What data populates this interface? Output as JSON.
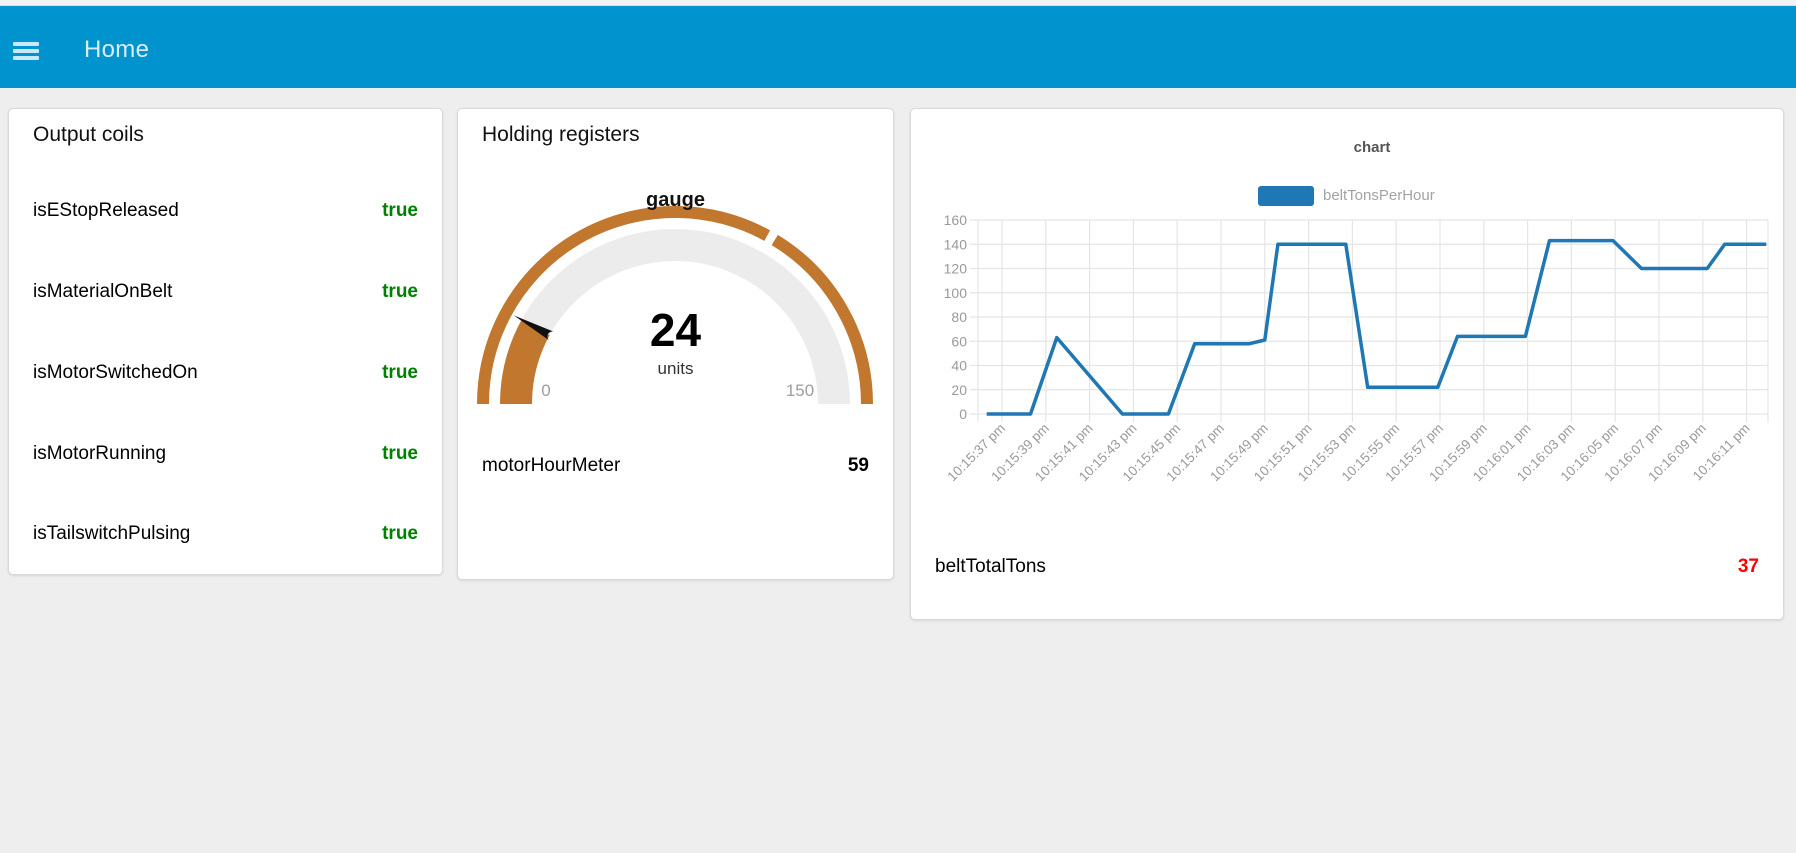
{
  "header": {
    "title": "Home"
  },
  "theme": {
    "header_bg": "#0193cd",
    "page_bg": "#eeeeee",
    "series_blue": "#1f77b4",
    "true_green": "#008000",
    "alert_red": "#ff0000",
    "gauge_orange": "#c1772e",
    "gauge_track": "#ececec",
    "grid_gray": "#e5e5e5",
    "axis_label_gray": "#9a9a9a"
  },
  "cards": {
    "output_coils": {
      "title": "Output coils",
      "rows": [
        {
          "label": "isEStopReleased",
          "value": "true"
        },
        {
          "label": "isMaterialOnBelt",
          "value": "true"
        },
        {
          "label": "isMotorSwitchedOn",
          "value": "true"
        },
        {
          "label": "isMotorRunning",
          "value": "true"
        },
        {
          "label": "isTailswitchPulsing",
          "value": "true"
        }
      ]
    },
    "holding_registers": {
      "title": "Holding registers",
      "gauge": {
        "title": "gauge",
        "value": "24",
        "value_num": 24,
        "units": "units",
        "min": "0",
        "max": "150",
        "min_num": 0,
        "max_num": 150,
        "segment_boundary": 100
      },
      "meter": {
        "label": "motorHourMeter",
        "value": "59"
      }
    },
    "chart_card": {
      "footer": {
        "label": "beltTotalTons",
        "value": "37"
      }
    }
  },
  "chart_data": {
    "type": "line",
    "title": "chart",
    "legend_position": "top",
    "grid": true,
    "legend": [
      {
        "label": "beltTonsPerHour",
        "color": "#1f77b4"
      }
    ],
    "y_axis": {
      "min": 0,
      "max": 160,
      "ticks": [
        0,
        20,
        40,
        60,
        80,
        100,
        120,
        140,
        160
      ]
    },
    "x_axis": {
      "unit": "time-of-day",
      "tick_seconds": [
        37,
        39,
        41,
        43,
        45,
        47,
        49,
        51,
        53,
        55,
        57,
        59,
        61,
        63,
        65,
        67,
        69,
        71
      ],
      "tick_labels": [
        "10:15:37 pm",
        "10:15:39 pm",
        "10:15:41 pm",
        "10:15:43 pm",
        "10:15:45 pm",
        "10:15:47 pm",
        "10:15:49 pm",
        "10:15:51 pm",
        "10:15:53 pm",
        "10:15:55 pm",
        "10:15:57 pm",
        "10:15:59 pm",
        "10:16:01 pm",
        "10:16:03 pm",
        "10:16:05 pm",
        "10:16:07 pm",
        "10:16:09 pm",
        "10:16:11 pm"
      ]
    },
    "series": [
      {
        "name": "beltTonsPerHour",
        "color": "#1f77b4",
        "points_t_v": [
          [
            36.3,
            0
          ],
          [
            38.3,
            0
          ],
          [
            39.5,
            63
          ],
          [
            42.5,
            0
          ],
          [
            44.6,
            0
          ],
          [
            45.8,
            58
          ],
          [
            48.3,
            58
          ],
          [
            49.0,
            61
          ],
          [
            49.6,
            140
          ],
          [
            52.7,
            140
          ],
          [
            53.7,
            22
          ],
          [
            56.9,
            22
          ],
          [
            57.8,
            64
          ],
          [
            60.9,
            64
          ],
          [
            62.0,
            143
          ],
          [
            64.9,
            143
          ],
          [
            66.2,
            120
          ],
          [
            69.2,
            120
          ],
          [
            70.0,
            140
          ],
          [
            71.9,
            140
          ]
        ]
      }
    ]
  }
}
